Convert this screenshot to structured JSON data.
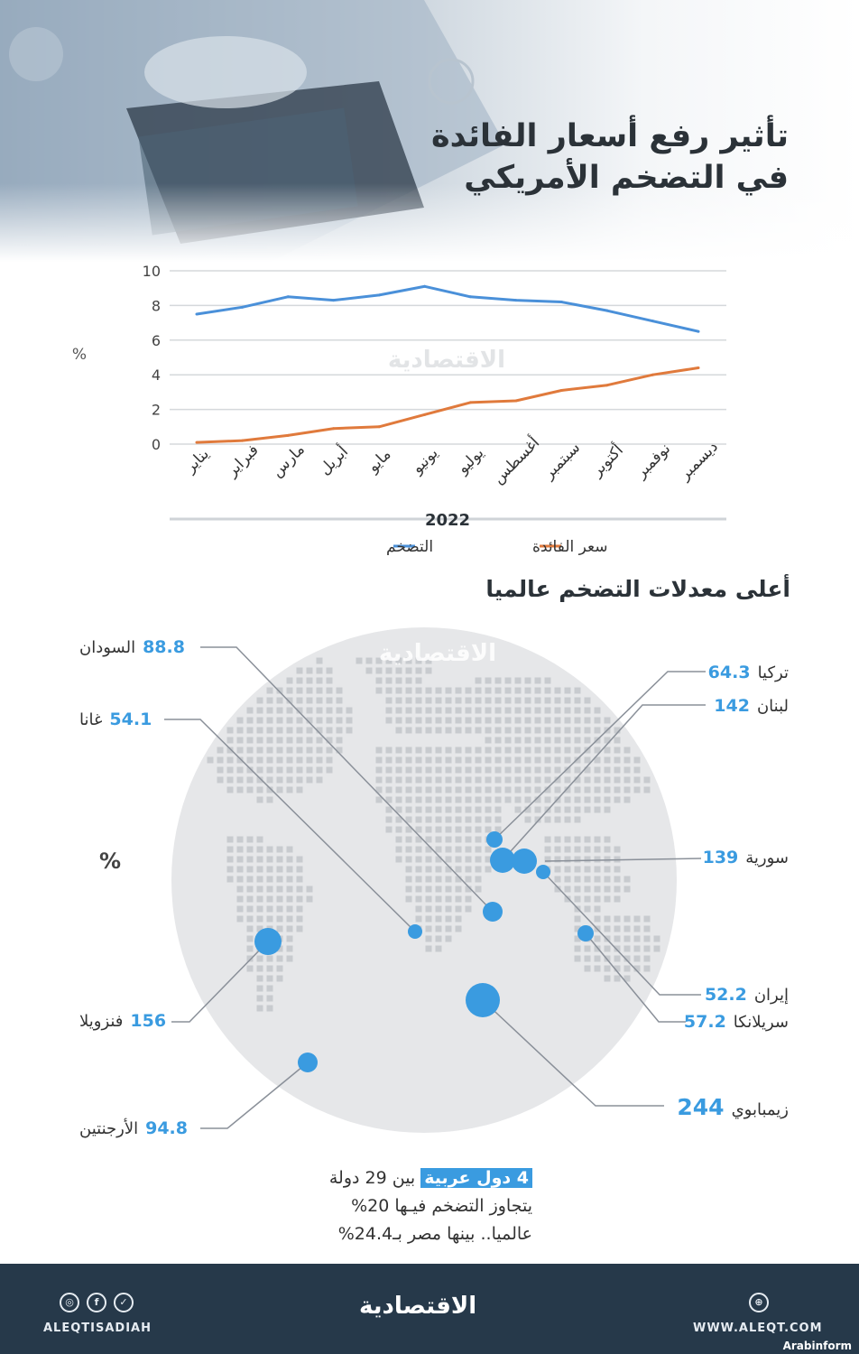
{
  "title": {
    "line1": "تأثير رفع أسعار الفائدة",
    "line2": "في التضخم الأمريكي"
  },
  "chart_data": {
    "type": "line",
    "ylabel": "%",
    "xlabel": "2022",
    "ylim": [
      0,
      10
    ],
    "yticks": [
      0,
      2,
      4,
      6,
      8,
      10
    ],
    "grid": true,
    "legend_position": "bottom",
    "watermark": "الاقتصادية",
    "categories": [
      "يناير",
      "فبراير",
      "مارس",
      "أبريل",
      "مايو",
      "يونيو",
      "يوليو",
      "أغسطس",
      "سبتمبر",
      "أكتوبر",
      "نوفمبر",
      "ديسمبر"
    ],
    "series": [
      {
        "name": "التضخم",
        "color": "#4a90d9",
        "values": [
          7.5,
          7.9,
          8.5,
          8.3,
          8.6,
          9.1,
          8.5,
          8.3,
          8.2,
          7.7,
          7.1,
          6.5
        ]
      },
      {
        "name": "سعر الفائدة",
        "color": "#e07a3c",
        "values": [
          0.1,
          0.2,
          0.5,
          0.9,
          1.0,
          1.7,
          2.4,
          2.5,
          3.1,
          3.4,
          4.0,
          4.4
        ]
      }
    ]
  },
  "section2": {
    "title": "أعلى معدلات التضخم عالميا",
    "unit": "%",
    "watermark": "الاقتصادية",
    "countries": [
      {
        "id": "sudan",
        "name": "السودان",
        "value": "88.8"
      },
      {
        "id": "ghana",
        "name": "غانا",
        "value": "54.1"
      },
      {
        "id": "turkey",
        "name": "تركيا",
        "value": "64.3"
      },
      {
        "id": "lebanon",
        "name": "لبنان",
        "value": "142"
      },
      {
        "id": "syria",
        "name": "سورية",
        "value": "139"
      },
      {
        "id": "iran",
        "name": "إيران",
        "value": "52.2"
      },
      {
        "id": "srilanka",
        "name": "سريلانكا",
        "value": "57.2"
      },
      {
        "id": "venezuela",
        "name": "فنزويلا",
        "value": "156"
      },
      {
        "id": "argentina",
        "name": "الأرجنتين",
        "value": "94.8"
      },
      {
        "id": "zimbabwe",
        "name": "زيمبابوي",
        "value": "244"
      }
    ],
    "colors": {
      "accent": "#3a9be0",
      "bubble": "#3a9be0",
      "map_dots": "#c8cbcf",
      "globe": "#e6e7e9"
    }
  },
  "note": {
    "highlight": "4 دول عربية",
    "line1_rest": "بين 29 دولة",
    "line2": "يتجاوز التضخم فيـها 20%",
    "line3": "عالميا.. بينها مصر بـ24.4%"
  },
  "footer": {
    "handle": "ALEQTISADIAH",
    "logo": "الاقتصادية",
    "url": "WWW.ALEQT.COM",
    "source": "Arabinform",
    "social_icons": [
      "instagram-icon",
      "facebook-icon",
      "twitter-icon"
    ],
    "bg_color": "#26394a"
  }
}
